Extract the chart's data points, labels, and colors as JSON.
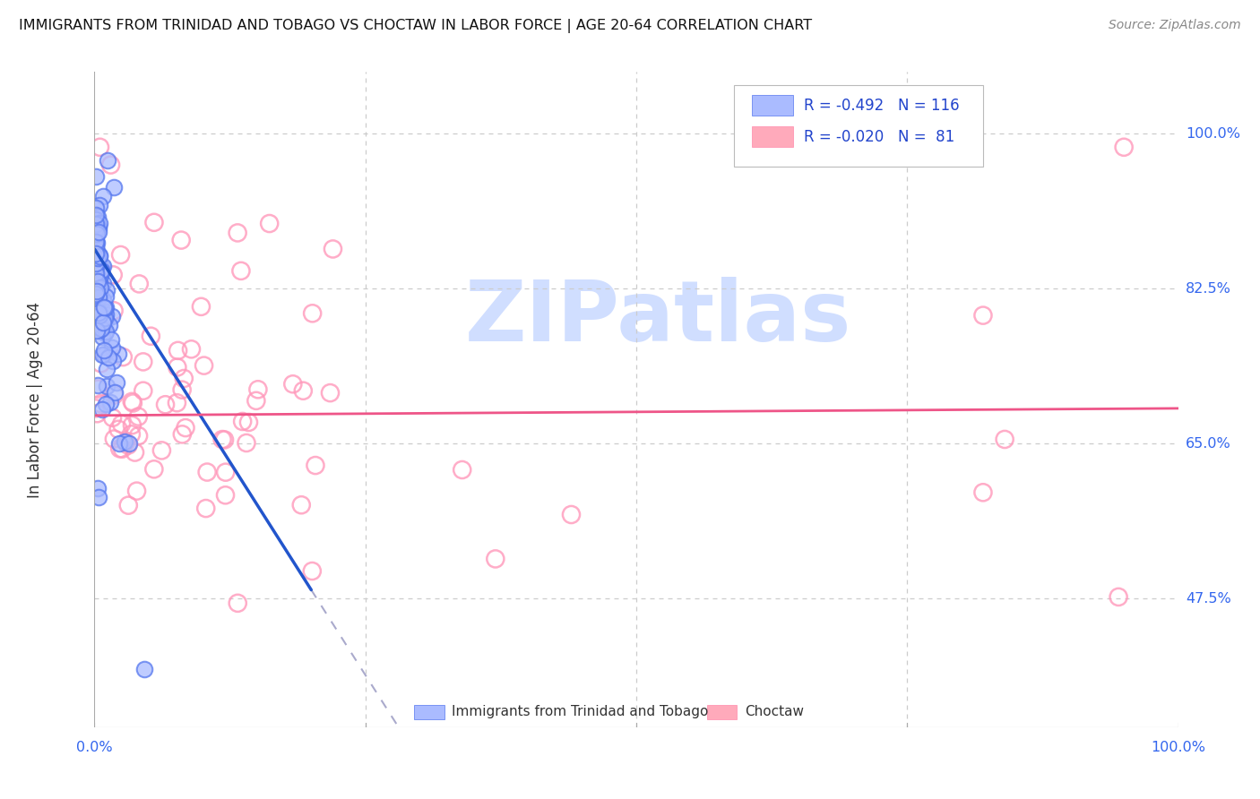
{
  "title": "IMMIGRANTS FROM TRINIDAD AND TOBAGO VS CHOCTAW IN LABOR FORCE | AGE 20-64 CORRELATION CHART",
  "source": "Source: ZipAtlas.com",
  "ylabel": "In Labor Force | Age 20-64",
  "ytick_vals": [
    0.475,
    0.65,
    0.825,
    1.0
  ],
  "ytick_labels": [
    "47.5%",
    "65.0%",
    "82.5%",
    "100.0%"
  ],
  "xtick_left": "0.0%",
  "xtick_right": "100.0%",
  "blue_R": -0.492,
  "blue_N": 116,
  "pink_R": -0.02,
  "pink_N": 81,
  "blue_face": "#AABBFF",
  "blue_edge": "#5577EE",
  "pink_face": "none",
  "pink_edge": "#FF99BB",
  "blue_line_color": "#2255CC",
  "pink_line_color": "#EE5588",
  "dash_color": "#AAAACC",
  "grid_color": "#CCCCCC",
  "tick_label_color": "#3366EE",
  "legend_text_color": "#2244CC",
  "watermark_text": "ZIPatlas",
  "watermark_color": "#D0DEFF",
  "legend_blue_face": "#AABBFF",
  "legend_pink_face": "#FFAABB",
  "bottom_legend_blue_label": "Immigrants from Trinidad and Tobago",
  "bottom_legend_pink_label": "Choctaw"
}
